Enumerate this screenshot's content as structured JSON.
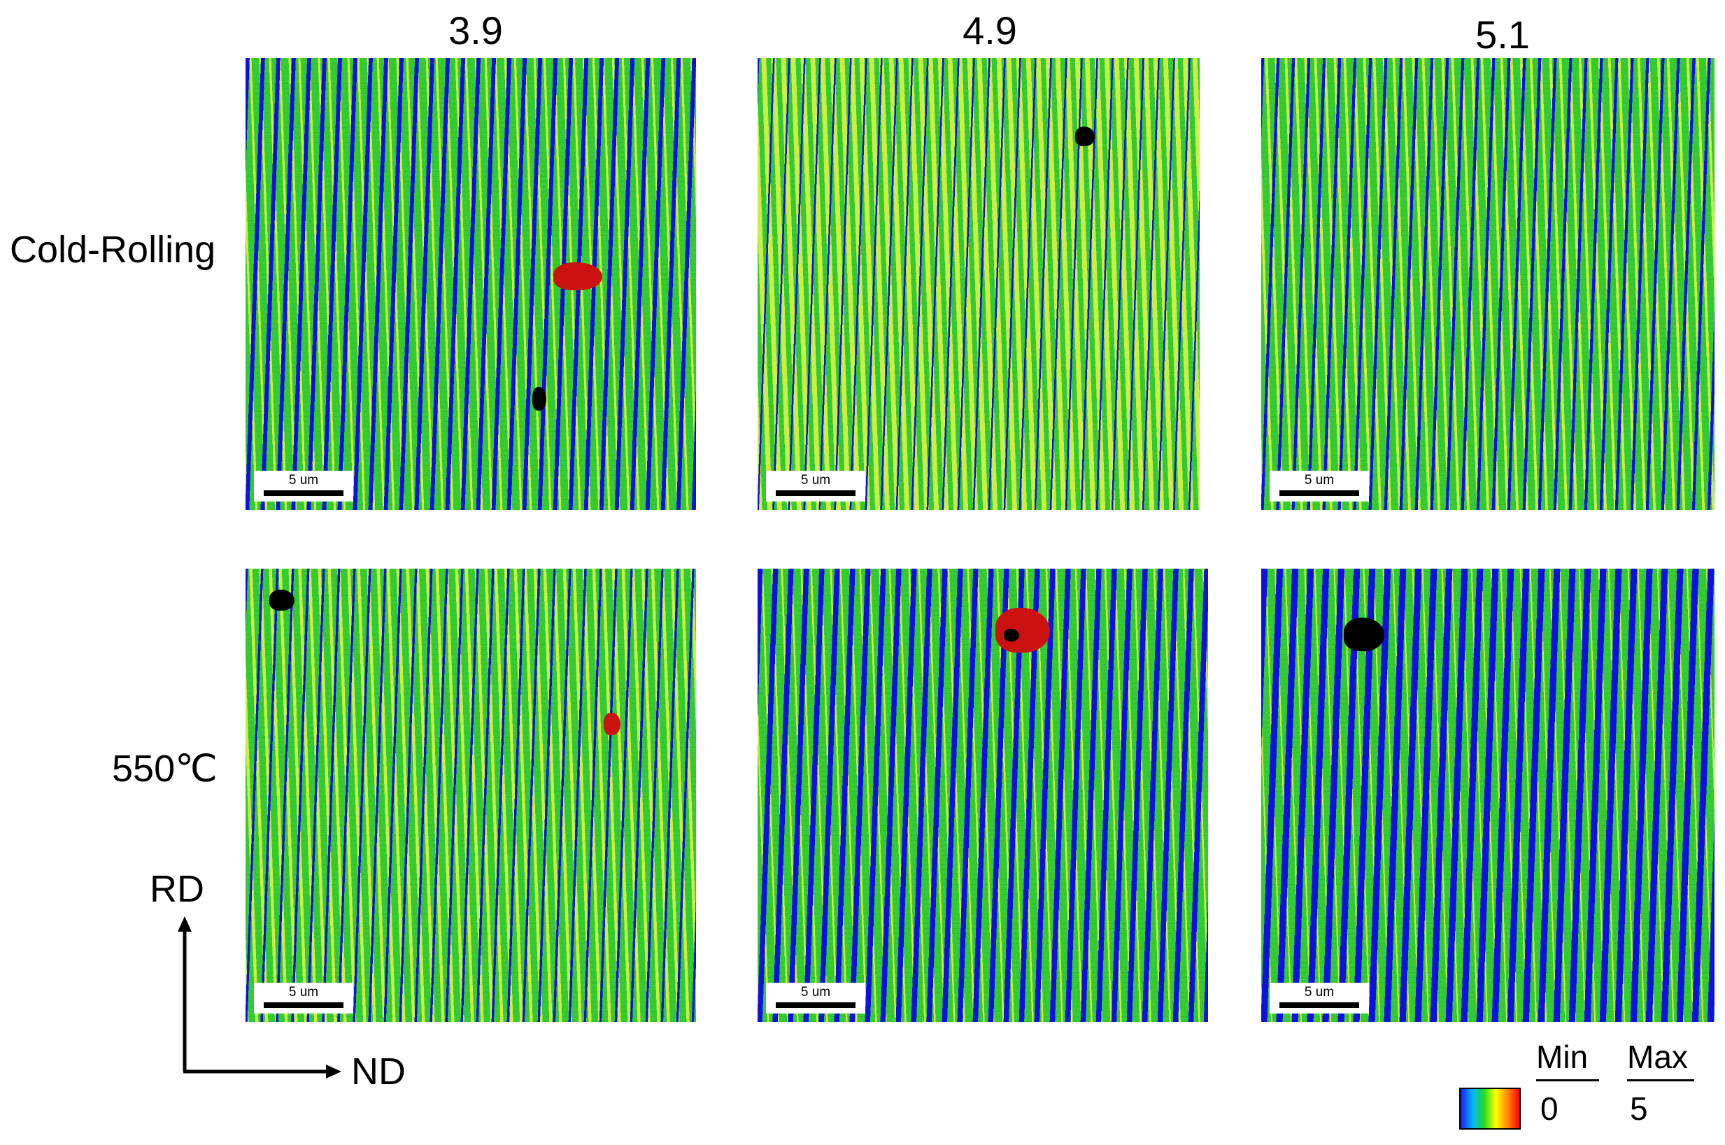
{
  "columns": [
    {
      "title": "3.9"
    },
    {
      "title": "4.9"
    },
    {
      "title": "5.1"
    }
  ],
  "rows": [
    {
      "label": "Cold-Rolling"
    },
    {
      "label": "550℃"
    }
  ],
  "panels": [
    {
      "row": 0,
      "col": 0,
      "scale_bar": "5 um",
      "blue_fraction": 0.35,
      "yellow_fraction": 0.25
    },
    {
      "row": 0,
      "col": 1,
      "scale_bar": "5 um",
      "blue_fraction": 0.15,
      "yellow_fraction": 0.55
    },
    {
      "row": 0,
      "col": 2,
      "scale_bar": "5 um",
      "blue_fraction": 0.25,
      "yellow_fraction": 0.3
    },
    {
      "row": 1,
      "col": 0,
      "scale_bar": "5 um",
      "blue_fraction": 0.2,
      "yellow_fraction": 0.35
    },
    {
      "row": 1,
      "col": 1,
      "scale_bar": "5 um",
      "blue_fraction": 0.45,
      "yellow_fraction": 0.2
    },
    {
      "row": 1,
      "col": 2,
      "scale_bar": "5 um",
      "blue_fraction": 0.55,
      "yellow_fraction": 0.1
    }
  ],
  "axes": {
    "vertical": "RD",
    "horizontal": "ND"
  },
  "legend": {
    "min_label": "Min",
    "max_label": "Max",
    "min_value": "0",
    "max_value": "5",
    "gradient": [
      "#1a1aff",
      "#00b4ff",
      "#22dd22",
      "#ffff00",
      "#ff8800",
      "#ff0000"
    ]
  },
  "colors": {
    "blue": "#1111dd",
    "green": "#33cc33",
    "yellow": "#ccee44",
    "red": "#cc1111",
    "black": "#000000"
  }
}
